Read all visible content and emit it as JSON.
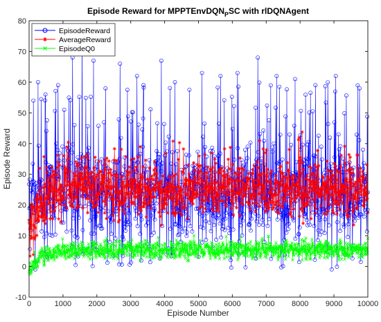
{
  "chart_data": {
    "type": "line",
    "title_main": "Episode Reward for MPPTEnvDQN",
    "title_sub": "P",
    "title_end": "SC with rlDQNAgent",
    "xlabel": "Episode Number",
    "ylabel": "Episode Reward",
    "xlim": [
      0,
      10000
    ],
    "ylim": [
      -10,
      80
    ],
    "xticks": [
      0,
      1000,
      2000,
      3000,
      4000,
      5000,
      6000,
      7000,
      8000,
      9000,
      10000
    ],
    "yticks": [
      -10,
      0,
      10,
      20,
      30,
      40,
      50,
      60,
      70,
      80
    ],
    "legend_position": "top-left",
    "episodes": 10000,
    "series": [
      {
        "name": "EpisodeReward",
        "color": "#0000ff",
        "marker": "circle",
        "spread": [
          -1,
          78
        ],
        "typical_range": [
          12,
          38
        ],
        "peaks": [
          {
            "x": 120,
            "y": 54
          },
          {
            "x": 260,
            "y": 60
          },
          {
            "x": 480,
            "y": 56
          },
          {
            "x": 850,
            "y": 59
          },
          {
            "x": 1280,
            "y": 68
          },
          {
            "x": 1560,
            "y": 78
          },
          {
            "x": 1900,
            "y": 67
          },
          {
            "x": 2250,
            "y": 58
          },
          {
            "x": 2680,
            "y": 66
          },
          {
            "x": 3180,
            "y": 62
          },
          {
            "x": 3900,
            "y": 67
          },
          {
            "x": 4300,
            "y": 60
          },
          {
            "x": 5100,
            "y": 63
          },
          {
            "x": 5650,
            "y": 62
          },
          {
            "x": 6150,
            "y": 63
          },
          {
            "x": 6750,
            "y": 68
          },
          {
            "x": 7300,
            "y": 62
          },
          {
            "x": 7850,
            "y": 61
          },
          {
            "x": 8450,
            "y": 59
          },
          {
            "x": 9050,
            "y": 62
          },
          {
            "x": 9750,
            "y": 58
          }
        ]
      },
      {
        "name": "AverageReward",
        "color": "#ff0000",
        "marker": "asterisk",
        "start": 10,
        "typical_range": [
          18,
          32
        ]
      },
      {
        "name": "EpisodeQ0",
        "color": "#00ff00",
        "marker": "x",
        "start": -1,
        "plateau": 5.5,
        "typical_range": [
          3,
          8
        ]
      }
    ]
  }
}
